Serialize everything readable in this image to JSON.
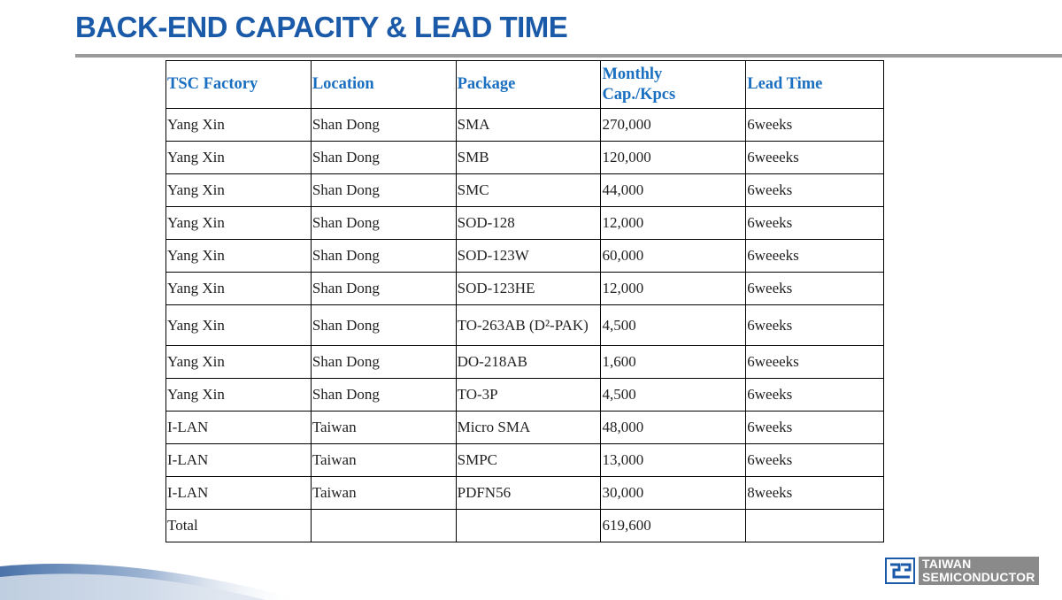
{
  "header": {
    "title": "BACK-END CAPACITY & LEAD TIME"
  },
  "table": {
    "columns": [
      "TSC Factory",
      "Location",
      "Package",
      "Monthly Cap./Kpcs",
      "Lead Time"
    ],
    "rows": [
      [
        "Yang Xin",
        "Shan Dong",
        "SMA",
        "270,000",
        "6weeks"
      ],
      [
        "Yang Xin",
        "Shan Dong",
        "SMB",
        "120,000",
        "6weeeks"
      ],
      [
        "Yang Xin",
        "Shan Dong",
        "SMC",
        "44,000",
        "6weeks"
      ],
      [
        "Yang Xin",
        "Shan Dong",
        "SOD-128",
        "12,000",
        "6weeks"
      ],
      [
        "Yang Xin",
        "Shan Dong",
        "SOD-123W",
        "60,000",
        "6weeeks"
      ],
      [
        "Yang Xin",
        "Shan Dong",
        "SOD-123HE",
        "12,000",
        "6weeks"
      ],
      [
        "Yang Xin",
        "Shan Dong",
        "TO-263AB (D²-PAK)",
        "4,500",
        "6weeks"
      ],
      [
        "Yang Xin",
        "Shan Dong",
        "DO-218AB",
        "1,600",
        "6weeeks"
      ],
      [
        "Yang Xin",
        "Shan Dong",
        "TO-3P",
        "4,500",
        "6weeks"
      ],
      [
        "I-LAN",
        "Taiwan",
        "Micro SMA",
        "48,000",
        "6weeks"
      ],
      [
        "I-LAN",
        "Taiwan",
        "SMPC",
        "13,000",
        "6weeks"
      ],
      [
        "I-LAN",
        "Taiwan",
        "PDFN56",
        "30,000",
        "8weeks"
      ]
    ],
    "total": {
      "label": "Total",
      "capacity": "619,600"
    }
  },
  "logo": {
    "line1": "TAIWAN",
    "line2": "SEMICONDUCTOR"
  }
}
